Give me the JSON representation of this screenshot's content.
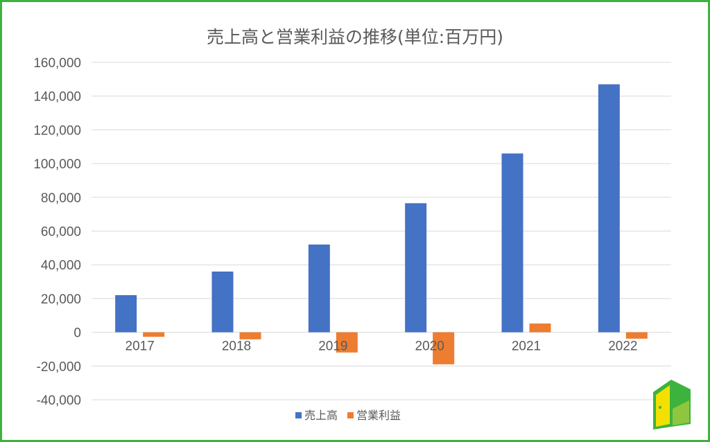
{
  "chart_data": {
    "type": "bar",
    "title": "売上高と営業利益の推移(単位:百万円)",
    "xlabel": "",
    "ylabel": "",
    "categories": [
      "2017",
      "2018",
      "2019",
      "2020",
      "2021",
      "2022"
    ],
    "series": [
      {
        "name": "売上高",
        "color": "#4472c4",
        "values": [
          22000,
          36000,
          52000,
          76500,
          106000,
          147000
        ]
      },
      {
        "name": "営業利益",
        "color": "#ed7d31",
        "values": [
          -2700,
          -4200,
          -12000,
          -19000,
          5200,
          -3800
        ]
      }
    ],
    "ylim": [
      -40000,
      160000
    ],
    "yticks": [
      {
        "value": 160000,
        "label": "160,000"
      },
      {
        "value": 140000,
        "label": "140,000"
      },
      {
        "value": 120000,
        "label": "120,000"
      },
      {
        "value": 100000,
        "label": "100,000"
      },
      {
        "value": 80000,
        "label": "80,000"
      },
      {
        "value": 60000,
        "label": "60,000"
      },
      {
        "value": 40000,
        "label": "40,000"
      },
      {
        "value": 20000,
        "label": "20,000"
      },
      {
        "value": 0,
        "label": "0"
      },
      {
        "value": -20000,
        "label": "-20,000"
      },
      {
        "value": -40000,
        "label": "-40,000"
      }
    ],
    "grid": true,
    "legend": "bottom"
  },
  "colors": {
    "border": "#3db33d",
    "gridline": "#d9d9d9",
    "text": "#595959"
  },
  "logo": {
    "icon": "door-icon"
  }
}
